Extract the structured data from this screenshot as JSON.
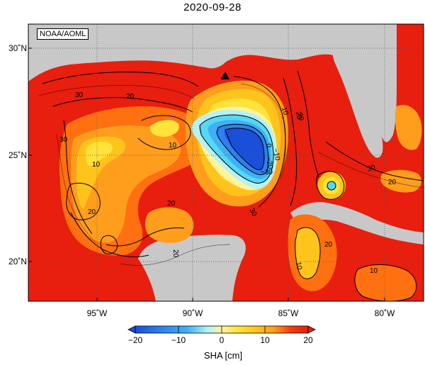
{
  "title": "2020-09-28",
  "credit": "NOAA/AOML",
  "lat_labels": [
    "30˚N",
    "25˚N",
    "20˚N"
  ],
  "lon_labels": [
    "95˚W",
    "90˚W",
    "85˚W",
    "80˚W"
  ],
  "colorbar": {
    "ticks": [
      "−20",
      "−10",
      "0",
      "10",
      "20"
    ],
    "label": "SHA [cm]",
    "colors": [
      "#1a4fd8",
      "#2f7ff0",
      "#3fb0f5",
      "#55d8f5",
      "#b6f2f5",
      "#fff49a",
      "#ffe23c",
      "#ffc41c",
      "#ff9e1c",
      "#ff7010",
      "#f53a0e",
      "#e81e0e"
    ]
  },
  "contour_labels": [
    "30",
    "20",
    "10",
    "0",
    "−10",
    "−20",
    "−30",
    "10",
    "20",
    "30",
    "20",
    "10",
    "30",
    "20",
    "10",
    "20",
    "20",
    "10",
    "30",
    "20",
    "20"
  ],
  "land_color": "#c8c8c8",
  "marker_icon": "triangle-marker"
}
